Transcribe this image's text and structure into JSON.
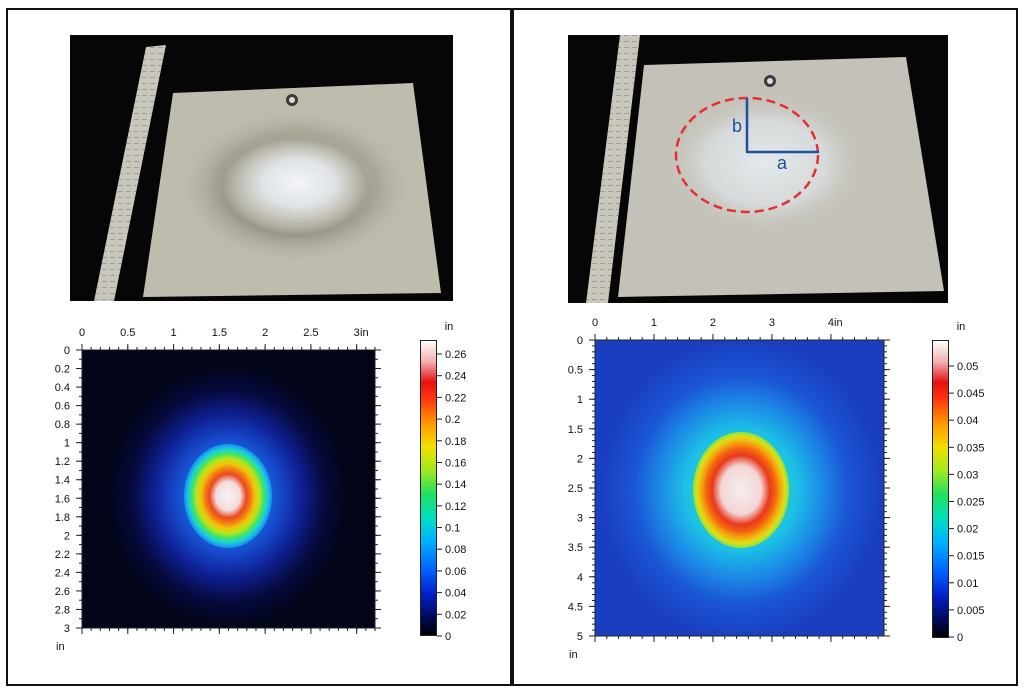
{
  "left": {
    "x_unit": "in",
    "y_unit": "in",
    "colorbar_unit": "in",
    "x_ticks": [
      "0",
      "0.5",
      "1",
      "1.5",
      "2",
      "2.5",
      "3"
    ],
    "y_ticks": [
      "0",
      "0.2",
      "0.4",
      "0.6",
      "0.8",
      "1",
      "1.2",
      "1.4",
      "1.6",
      "1.8",
      "2",
      "2.2",
      "2.4",
      "2.6",
      "2.8",
      "3"
    ],
    "colorbar_ticks": [
      "0.26",
      "0.24",
      "0.22",
      "0.2",
      "0.18",
      "0.16",
      "0.14",
      "0.12",
      "0.1",
      "0.08",
      "0.06",
      "0.04",
      "0.02",
      "0"
    ]
  },
  "right": {
    "x_unit": "in",
    "y_unit": "in",
    "colorbar_unit": "in",
    "x_ticks": [
      "0",
      "1",
      "2",
      "3",
      "4"
    ],
    "y_ticks": [
      "0",
      "0.5",
      "1",
      "1.5",
      "2",
      "2.5",
      "3",
      "3.5",
      "4",
      "4.5",
      "5"
    ],
    "colorbar_ticks": [
      "0.05",
      "0.045",
      "0.04",
      "0.035",
      "0.03",
      "0.025",
      "0.02",
      "0.015",
      "0.01",
      "0.005",
      "0"
    ],
    "ellipse_labels": {
      "a": "a",
      "b": "b"
    }
  },
  "colors": {
    "annotation_ellipse": "#e53030",
    "annotation_axes": "#1e4fa0",
    "frame": "#111111"
  }
}
